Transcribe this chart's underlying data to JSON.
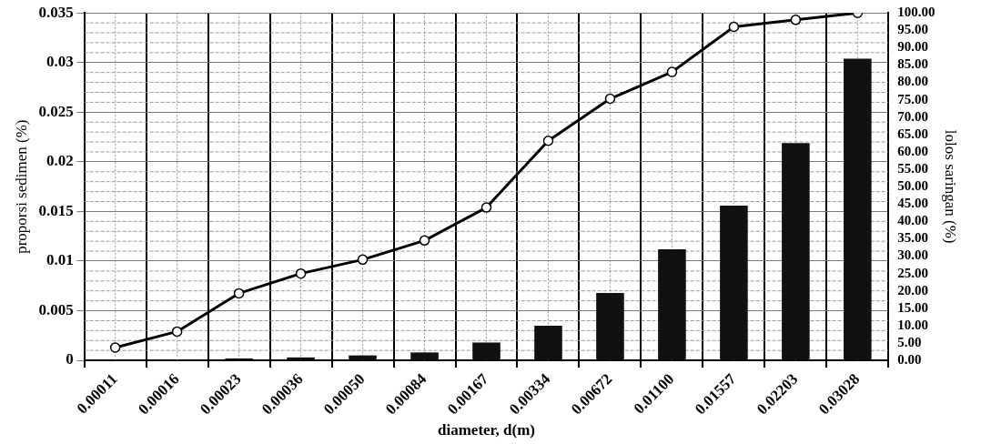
{
  "chart_data": {
    "type": "bar",
    "xlabel": "diameter, d(m)",
    "ylabel": "proporsi sedimen (%)",
    "y2label": "lolos saringan (%)",
    "categories": [
      "0.00011",
      "0.00016",
      "0.00023",
      "0.00036",
      "0.00050",
      "0.00084",
      "0.00167",
      "0.00334",
      "0.00672",
      "0.01100",
      "0.01557",
      "0.02203",
      "0.03028"
    ],
    "series": [
      {
        "color": "#111111",
        "values": [
          0,
          null,
          0.0002,
          0.0003,
          0.0005,
          0.0008,
          0.0018,
          0.0035,
          0.0068,
          0.0112,
          0.0156,
          0.0219,
          0.0304
        ]
      },
      {
        "type": "line",
        "axis": "y2",
        "color": "#000000",
        "marker": "circle",
        "values": [
          3.7,
          8.3,
          19.3,
          25,
          29,
          34.5,
          44,
          63.2,
          75.3,
          83,
          96,
          98,
          100
        ]
      }
    ],
    "ylim": [
      0,
      0.035
    ],
    "yticks": [
      0,
      0.005,
      0.01,
      0.015,
      0.02,
      0.025,
      0.03,
      0.035
    ],
    "y2lim": [
      0,
      100
    ],
    "y2ticks": [
      {
        "value": 0,
        "label": "0.00"
      },
      {
        "value": 5,
        "label": "5.00"
      },
      {
        "value": 10,
        "label": "10.00"
      },
      {
        "value": 15,
        "label": "15.00"
      },
      {
        "value": 20,
        "label": "20.00"
      },
      {
        "value": 25,
        "label": "25.00"
      },
      {
        "value": 30,
        "label": "30.00"
      },
      {
        "value": 35,
        "label": "35.00"
      },
      {
        "value": 40,
        "label": "40.00"
      },
      {
        "value": 45,
        "label": "45.00"
      },
      {
        "value": 50,
        "label": "50.00"
      },
      {
        "value": 55,
        "label": "55.00"
      },
      {
        "value": 60,
        "label": "60.00"
      },
      {
        "value": 65,
        "label": "65.00"
      },
      {
        "value": 70,
        "label": "70.00"
      },
      {
        "value": 75,
        "label": "75.00"
      },
      {
        "value": 80,
        "label": "80.00"
      },
      {
        "value": 85,
        "label": "85.00"
      },
      {
        "value": 90,
        "label": "90.00"
      },
      {
        "value": 95,
        "label": "95.00"
      },
      {
        "value": 100,
        "label": "100.00"
      }
    ],
    "grid": true,
    "legend": false
  }
}
